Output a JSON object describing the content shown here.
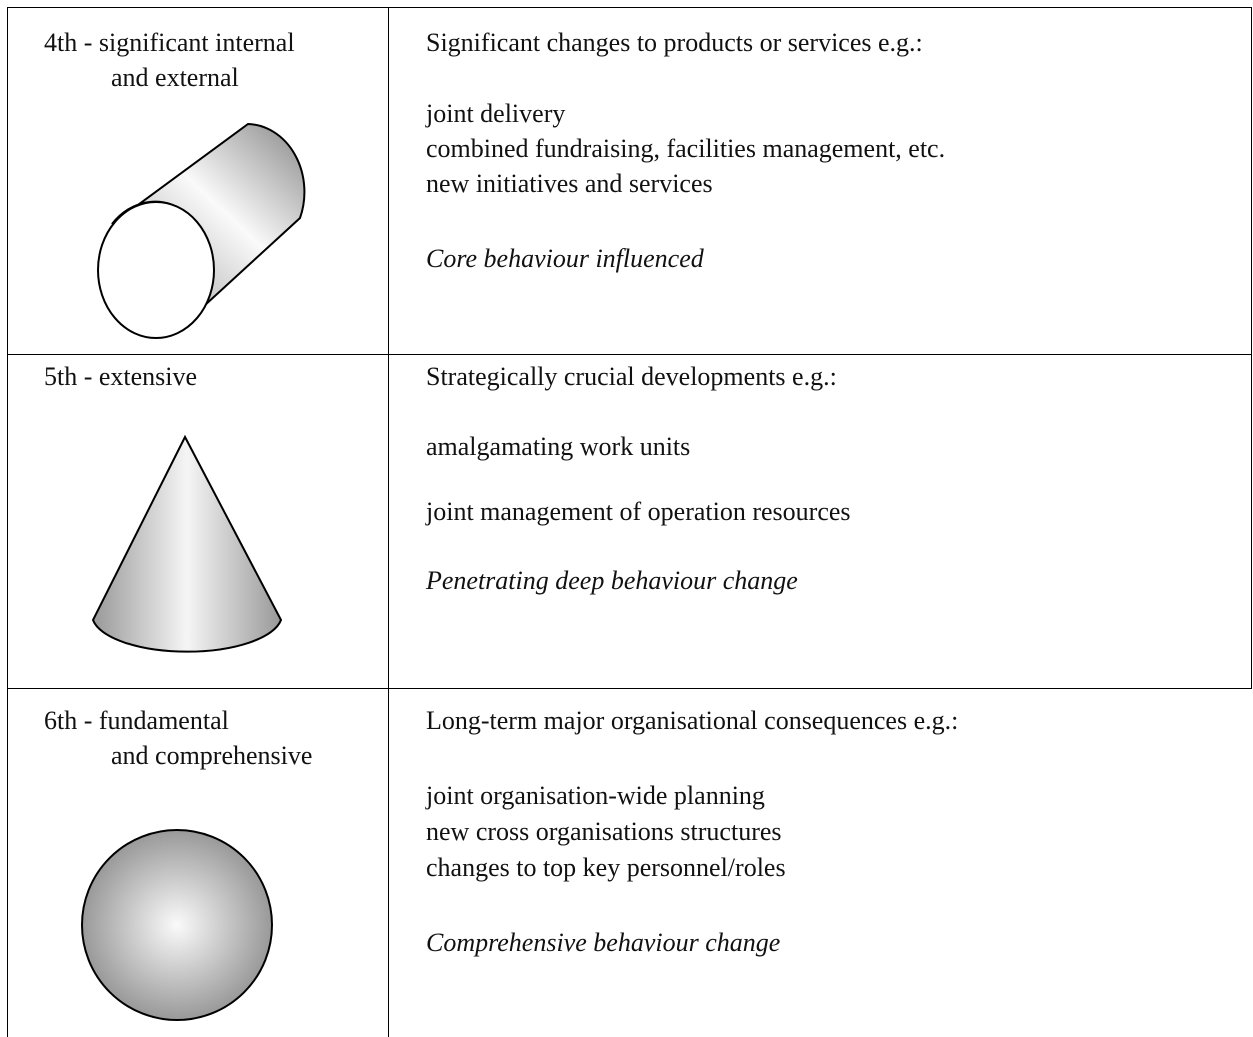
{
  "rows": [
    {
      "level": [
        "4th - significant internal",
        "and external"
      ],
      "heading": "Significant changes to products or services e.g.:",
      "items": [
        "joint delivery",
        "combined fundraising, facilities management, etc.",
        "new initiatives and services"
      ],
      "note": "Core behaviour influenced"
    },
    {
      "level": [
        "5th - extensive"
      ],
      "heading": "Strategically crucial developments e.g.:",
      "items": [
        "amalgamating work units",
        "joint management of operation resources"
      ],
      "note": "Penetrating deep behaviour change"
    },
    {
      "level": [
        "6th - fundamental",
        "and comprehensive"
      ],
      "heading": "Long-term major organisational consequences e.g.:",
      "items": [
        "joint organisation-wide planning",
        "new cross organisations structures",
        "changes to top key personnel/roles"
      ],
      "note": "Comprehensive behaviour change"
    }
  ]
}
